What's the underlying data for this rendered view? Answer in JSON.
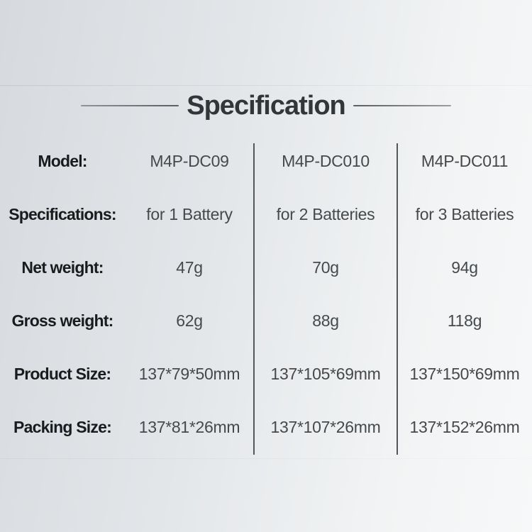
{
  "title": "Specification",
  "table": {
    "rows": [
      {
        "label": "Model:",
        "values": [
          "M4P-DC09",
          "M4P-DC010",
          "M4P-DC011"
        ]
      },
      {
        "label": "Specifications:",
        "values": [
          "for 1 Battery",
          "for 2 Batteries",
          "for 3 Batteries"
        ]
      },
      {
        "label": "Net weight:",
        "values": [
          "47g",
          "70g",
          "94g"
        ]
      },
      {
        "label": "Gross weight:",
        "values": [
          "62g",
          "88g",
          "118g"
        ]
      },
      {
        "label": "Product Size:",
        "values": [
          "137*79*50mm",
          "137*105*69mm",
          "137*150*69mm"
        ]
      },
      {
        "label": "Packing Size:",
        "values": [
          "137*81*26mm",
          "137*107*26mm",
          "137*152*26mm"
        ]
      }
    ]
  },
  "colors": {
    "background_left": "#d6dade",
    "background_right": "#f7f8f9",
    "title_text": "#333639",
    "title_line": "#55585b",
    "label_text": "#1a1b1d",
    "value_text": "#46494c",
    "divider": "#54575b"
  }
}
